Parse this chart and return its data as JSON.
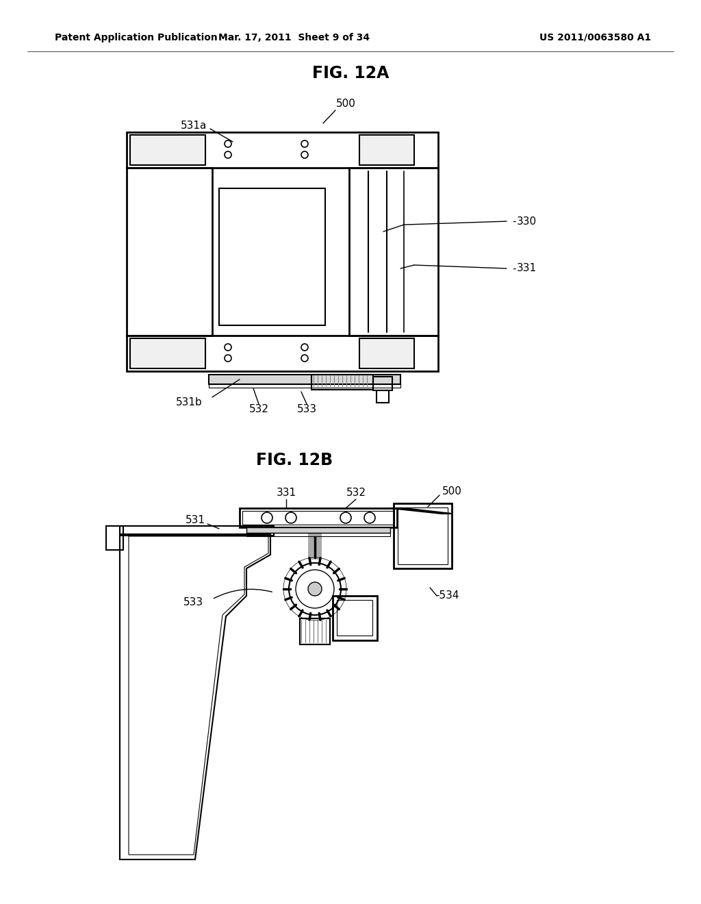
{
  "header_left": "Patent Application Publication",
  "header_mid": "Mar. 17, 2011  Sheet 9 of 34",
  "header_right": "US 2011/0063580 A1",
  "fig12a_title": "FIG. 12A",
  "fig12b_title": "FIG. 12B",
  "bg_color": "#ffffff",
  "line_color": "#000000",
  "text_color": "#000000"
}
